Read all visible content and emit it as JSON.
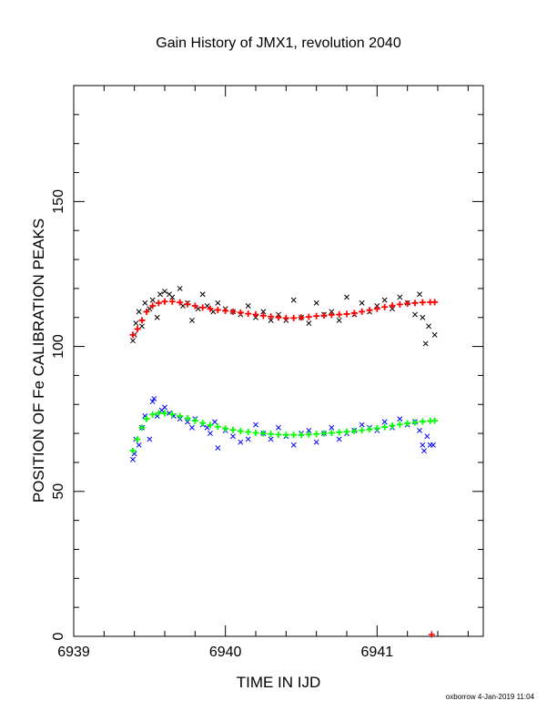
{
  "chart_data": {
    "type": "scatter",
    "title": "Gain History of JMX1, revolution 2040",
    "xlabel": "TIME IN IJD",
    "ylabel": "POSITION OF Fe CALIBRATION PEAKS",
    "xlim": [
      6939.0,
      6941.7
    ],
    "ylim": [
      0,
      190
    ],
    "x_ticks": [
      "6939",
      "6940",
      "6941"
    ],
    "y_ticks": [
      "0",
      "50",
      "100",
      "150"
    ],
    "grid": false,
    "series": [
      {
        "marker": "x",
        "color": "#000000",
        "points": [
          [
            6939.39,
            102
          ],
          [
            6939.4,
            104
          ],
          [
            6939.41,
            108
          ],
          [
            6939.43,
            112
          ],
          [
            6939.45,
            107
          ],
          [
            6939.47,
            115
          ],
          [
            6939.5,
            113
          ],
          [
            6939.52,
            116
          ],
          [
            6939.55,
            110
          ],
          [
            6939.57,
            118
          ],
          [
            6939.6,
            119
          ],
          [
            6939.63,
            118
          ],
          [
            6939.65,
            117
          ],
          [
            6939.7,
            120
          ],
          [
            6939.72,
            114
          ],
          [
            6939.75,
            115
          ],
          [
            6939.78,
            109
          ],
          [
            6939.82,
            113
          ],
          [
            6939.85,
            118
          ],
          [
            6939.88,
            114
          ],
          [
            6939.92,
            112
          ],
          [
            6939.95,
            115
          ],
          [
            6940.0,
            113
          ],
          [
            6940.05,
            112
          ],
          [
            6940.1,
            111
          ],
          [
            6940.15,
            114
          ],
          [
            6940.2,
            110
          ],
          [
            6940.25,
            112
          ],
          [
            6940.3,
            109
          ],
          [
            6940.35,
            111
          ],
          [
            6940.4,
            109
          ],
          [
            6940.45,
            116
          ],
          [
            6940.5,
            110
          ],
          [
            6940.55,
            108
          ],
          [
            6940.6,
            115
          ],
          [
            6940.65,
            111
          ],
          [
            6940.7,
            112
          ],
          [
            6940.75,
            109
          ],
          [
            6940.8,
            117
          ],
          [
            6940.85,
            111
          ],
          [
            6940.9,
            115
          ],
          [
            6940.95,
            112
          ],
          [
            6941.0,
            114
          ],
          [
            6941.05,
            116
          ],
          [
            6941.1,
            113
          ],
          [
            6941.15,
            117
          ],
          [
            6941.2,
            115
          ],
          [
            6941.25,
            111
          ],
          [
            6941.28,
            118
          ],
          [
            6941.3,
            110
          ],
          [
            6941.32,
            101
          ],
          [
            6941.34,
            107
          ],
          [
            6941.38,
            104
          ]
        ]
      },
      {
        "marker": "+",
        "color": "#ff0000",
        "points": [
          [
            6939.39,
            104
          ],
          [
            6939.42,
            106
          ],
          [
            6939.45,
            109
          ],
          [
            6939.48,
            112
          ],
          [
            6939.52,
            114
          ],
          [
            6939.56,
            115
          ],
          [
            6939.6,
            115.5
          ],
          [
            6939.65,
            115.5
          ],
          [
            6939.7,
            115.2
          ],
          [
            6939.75,
            114.6
          ],
          [
            6939.8,
            114
          ],
          [
            6939.85,
            113.4
          ],
          [
            6939.9,
            113
          ],
          [
            6939.95,
            112.6
          ],
          [
            6940.0,
            112.3
          ],
          [
            6940.05,
            112
          ],
          [
            6940.1,
            111.7
          ],
          [
            6940.15,
            111.3
          ],
          [
            6940.2,
            111
          ],
          [
            6940.25,
            110.6
          ],
          [
            6940.3,
            110.3
          ],
          [
            6940.35,
            110
          ],
          [
            6940.4,
            109.8
          ],
          [
            6940.45,
            109.8
          ],
          [
            6940.5,
            110
          ],
          [
            6940.55,
            110.2
          ],
          [
            6940.6,
            110.5
          ],
          [
            6940.65,
            110.7
          ],
          [
            6940.7,
            110.9
          ],
          [
            6940.75,
            111
          ],
          [
            6940.8,
            111.2
          ],
          [
            6940.85,
            111.5
          ],
          [
            6940.9,
            112
          ],
          [
            6940.95,
            112.5
          ],
          [
            6941.0,
            113
          ],
          [
            6941.05,
            113.6
          ],
          [
            6941.1,
            114.1
          ],
          [
            6941.15,
            114.5
          ],
          [
            6941.2,
            114.8
          ],
          [
            6941.25,
            115
          ],
          [
            6941.3,
            115.2
          ],
          [
            6941.35,
            115.3
          ],
          [
            6941.38,
            115.3
          ]
        ]
      },
      {
        "marker": "x",
        "color": "#0000ff",
        "points": [
          [
            6939.39,
            61
          ],
          [
            6939.4,
            63
          ],
          [
            6939.41,
            68
          ],
          [
            6939.43,
            66
          ],
          [
            6939.45,
            72
          ],
          [
            6939.47,
            76
          ],
          [
            6939.5,
            68
          ],
          [
            6939.52,
            81
          ],
          [
            6939.53,
            82
          ],
          [
            6939.55,
            76
          ],
          [
            6939.58,
            78
          ],
          [
            6939.6,
            79
          ],
          [
            6939.63,
            77
          ],
          [
            6939.66,
            76
          ],
          [
            6939.7,
            75
          ],
          [
            6939.75,
            74
          ],
          [
            6939.78,
            72
          ],
          [
            6939.8,
            75
          ],
          [
            6939.85,
            73
          ],
          [
            6939.88,
            72
          ],
          [
            6939.9,
            70
          ],
          [
            6939.93,
            74
          ],
          [
            6939.95,
            65
          ],
          [
            6940.0,
            71
          ],
          [
            6940.05,
            69
          ],
          [
            6940.1,
            67
          ],
          [
            6940.15,
            68
          ],
          [
            6940.2,
            73
          ],
          [
            6940.25,
            70
          ],
          [
            6940.3,
            68
          ],
          [
            6940.35,
            72
          ],
          [
            6940.4,
            69
          ],
          [
            6940.45,
            66
          ],
          [
            6940.5,
            70
          ],
          [
            6940.55,
            71
          ],
          [
            6940.6,
            67
          ],
          [
            6940.65,
            70
          ],
          [
            6940.7,
            72
          ],
          [
            6940.75,
            68
          ],
          [
            6940.8,
            70
          ],
          [
            6940.85,
            71
          ],
          [
            6940.9,
            73
          ],
          [
            6940.95,
            72
          ],
          [
            6941.0,
            71
          ],
          [
            6941.05,
            74
          ],
          [
            6941.1,
            72
          ],
          [
            6941.15,
            75
          ],
          [
            6941.2,
            73
          ],
          [
            6941.25,
            74
          ],
          [
            6941.28,
            71
          ],
          [
            6941.3,
            66
          ],
          [
            6941.31,
            64
          ],
          [
            6941.33,
            69
          ],
          [
            6941.35,
            66
          ],
          [
            6941.37,
            66
          ]
        ]
      },
      {
        "marker": "+",
        "color": "#00ff00",
        "points": [
          [
            6939.39,
            64
          ],
          [
            6939.42,
            68
          ],
          [
            6939.45,
            72
          ],
          [
            6939.48,
            75
          ],
          [
            6939.52,
            76.5
          ],
          [
            6939.56,
            77
          ],
          [
            6939.6,
            77
          ],
          [
            6939.65,
            76.6
          ],
          [
            6939.7,
            76
          ],
          [
            6939.75,
            75.2
          ],
          [
            6939.8,
            74.4
          ],
          [
            6939.85,
            73.6
          ],
          [
            6939.9,
            72.9
          ],
          [
            6939.95,
            72.3
          ],
          [
            6940.0,
            71.7
          ],
          [
            6940.05,
            71.2
          ],
          [
            6940.1,
            70.8
          ],
          [
            6940.15,
            70.5
          ],
          [
            6940.2,
            70.2
          ],
          [
            6940.25,
            70
          ],
          [
            6940.3,
            69.8
          ],
          [
            6940.35,
            69.6
          ],
          [
            6940.4,
            69.5
          ],
          [
            6940.45,
            69.5
          ],
          [
            6940.5,
            69.5
          ],
          [
            6940.55,
            69.6
          ],
          [
            6940.6,
            69.8
          ],
          [
            6940.65,
            70
          ],
          [
            6940.7,
            70.2
          ],
          [
            6940.75,
            70.4
          ],
          [
            6940.8,
            70.6
          ],
          [
            6940.85,
            70.8
          ],
          [
            6940.9,
            71.1
          ],
          [
            6940.95,
            71.4
          ],
          [
            6941.0,
            71.8
          ],
          [
            6941.05,
            72.2
          ],
          [
            6941.1,
            72.7
          ],
          [
            6941.15,
            73.1
          ],
          [
            6941.2,
            73.5
          ],
          [
            6941.25,
            73.8
          ],
          [
            6941.3,
            74.1
          ],
          [
            6941.35,
            74.3
          ],
          [
            6941.38,
            74.4
          ]
        ]
      }
    ],
    "annotations": [
      {
        "marker": "+",
        "color": "#ff0000",
        "x": 6941.36,
        "y": 0
      }
    ]
  },
  "footer": {
    "stamp": "oxborrow  4-Jan-2019 11:04"
  }
}
